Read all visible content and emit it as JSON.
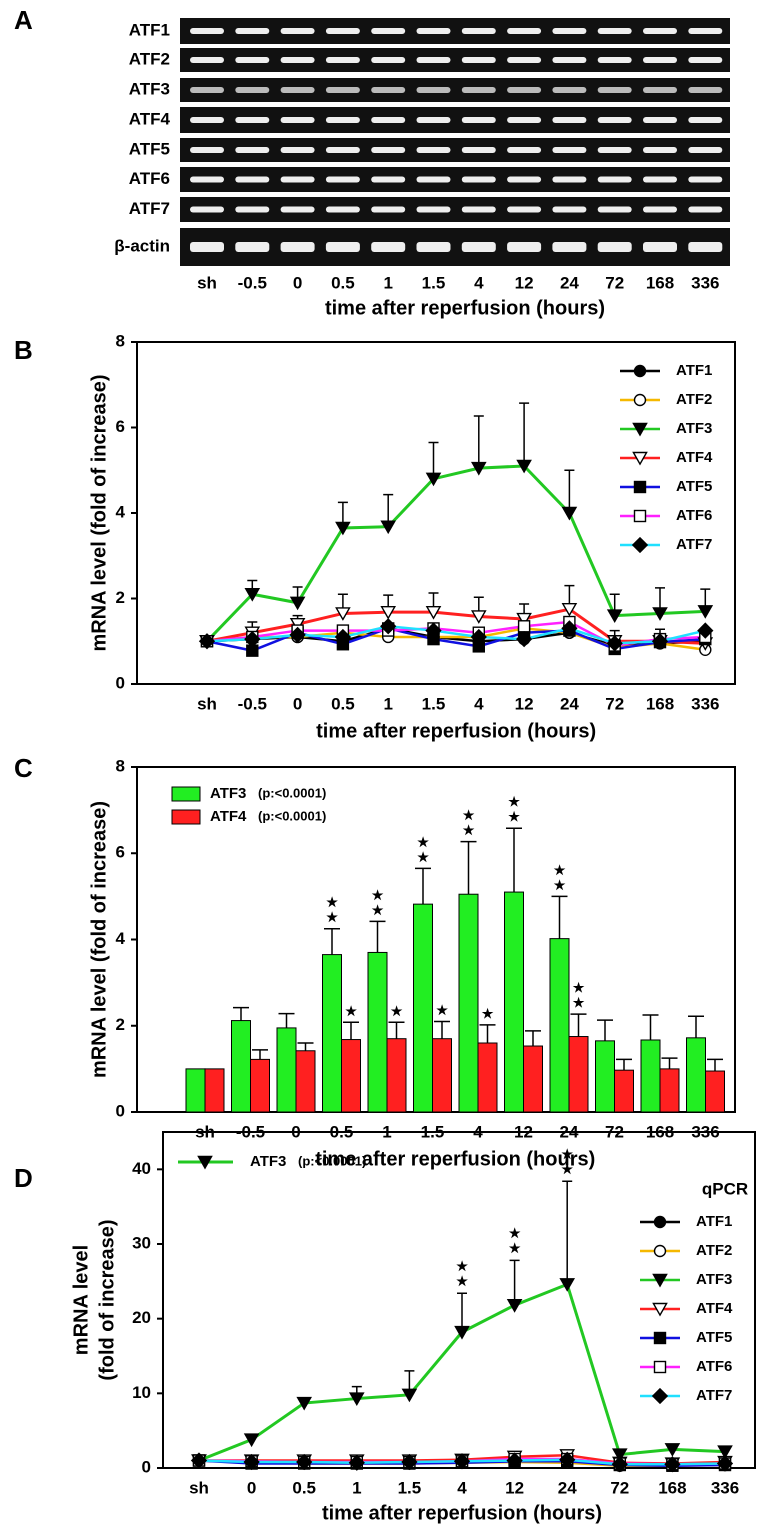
{
  "chart_data": [
    {
      "type": "gel",
      "label": "A",
      "rows": [
        "ATF1",
        "ATF2",
        "ATF3",
        "ATF4",
        "ATF5",
        "ATF6",
        "ATF7",
        "β-actin"
      ],
      "categories": [
        "sh",
        "-0.5",
        "0",
        "0.5",
        "1",
        "1.5",
        "4",
        "12",
        "24",
        "72",
        "168",
        "336"
      ],
      "xlabel": "time after reperfusion (hours)"
    },
    {
      "type": "line",
      "label": "B",
      "ylabel": "mRNA level (fold of increase)",
      "xlabel": "time after reperfusion (hours)",
      "categories": [
        "sh",
        "-0.5",
        "0",
        "0.5",
        "1",
        "1.5",
        "4",
        "12",
        "24",
        "72",
        "168",
        "336"
      ],
      "ylim": [
        0,
        8
      ],
      "yticks": [
        0,
        2,
        4,
        6,
        8
      ],
      "legend": "upper right",
      "marker_color": "#000000",
      "series": [
        {
          "name": "ATF1",
          "color": "#000000",
          "marker": "circle",
          "filled": true,
          "values": [
            1,
            1.05,
            1.1,
            1.0,
            1.3,
            1.1,
            1.0,
            1.05,
            1.2,
            0.9,
            0.95,
            1.0
          ]
        },
        {
          "name": "ATF2",
          "color": "#f5b800",
          "marker": "circle",
          "filled": false,
          "values": [
            1,
            1.1,
            1.1,
            1.2,
            1.1,
            1.1,
            1.1,
            1.3,
            1.2,
            0.85,
            0.95,
            0.8
          ]
        },
        {
          "name": "ATF3",
          "color": "#22c822",
          "marker": "triangle",
          "filled": true,
          "values": [
            1,
            2.1,
            1.9,
            3.65,
            3.68,
            4.8,
            5.05,
            5.1,
            4.0,
            1.6,
            1.65,
            1.7
          ],
          "errors": [
            null,
            0.32,
            0.37,
            0.6,
            0.75,
            0.85,
            1.22,
            1.47,
            1.0,
            0.5,
            0.6,
            0.52
          ]
        },
        {
          "name": "ATF4",
          "color": "#ff2020",
          "marker": "triangle",
          "filled": false,
          "values": [
            1,
            1.2,
            1.4,
            1.65,
            1.68,
            1.68,
            1.58,
            1.52,
            1.75,
            1.0,
            1.0,
            0.95
          ],
          "errors": [
            null,
            0.25,
            0.2,
            0.45,
            0.4,
            0.45,
            0.45,
            0.35,
            0.55,
            0.25,
            0.28,
            0.28
          ]
        },
        {
          "name": "ATF5",
          "color": "#1010e0",
          "marker": "square",
          "filled": true,
          "values": [
            1,
            0.78,
            1.2,
            0.93,
            1.3,
            1.05,
            0.88,
            1.2,
            1.25,
            0.82,
            0.98,
            1.05
          ]
        },
        {
          "name": "ATF6",
          "color": "#ff20ff",
          "marker": "square",
          "filled": false,
          "values": [
            1,
            1.1,
            1.25,
            1.25,
            1.25,
            1.3,
            1.2,
            1.35,
            1.45,
            0.9,
            1.05,
            1.1
          ]
        },
        {
          "name": "ATF7",
          "color": "#20e0ff",
          "marker": "diamond",
          "filled": true,
          "values": [
            1,
            1.05,
            1.15,
            1.1,
            1.35,
            1.25,
            1.1,
            1.05,
            1.3,
            0.95,
            1.0,
            1.25
          ]
        }
      ]
    },
    {
      "type": "bar",
      "label": "C",
      "ylabel": "mRNA level (fold of increase)",
      "xlabel": "time after reperfusion (hours)",
      "categories": [
        "sh",
        "-0.5",
        "0",
        "0.5",
        "1",
        "1.5",
        "4",
        "12",
        "24",
        "72",
        "168",
        "336"
      ],
      "ylim": [
        0,
        8
      ],
      "yticks": [
        0,
        2,
        4,
        6,
        8
      ],
      "legend": "upper left",
      "series": [
        {
          "name": "ATF3",
          "note": "(p:<0.0001)",
          "color": "#22ee22",
          "values": [
            1,
            2.12,
            1.95,
            3.65,
            3.7,
            4.82,
            5.05,
            5.1,
            4.02,
            1.65,
            1.67,
            1.72
          ],
          "errors": [
            null,
            0.3,
            0.33,
            0.6,
            0.72,
            0.83,
            1.22,
            1.48,
            0.98,
            0.48,
            0.58,
            0.5
          ],
          "annotations": [
            null,
            null,
            null,
            "★★",
            "★★",
            "★★",
            "★★",
            "★★",
            "★★",
            null,
            null,
            null
          ]
        },
        {
          "name": "ATF4",
          "note": "(p:<0.0001)",
          "color": "#ff2020",
          "values": [
            1,
            1.22,
            1.42,
            1.68,
            1.7,
            1.7,
            1.6,
            1.53,
            1.75,
            0.97,
            1.0,
            0.95
          ],
          "errors": [
            null,
            0.22,
            0.18,
            0.4,
            0.38,
            0.4,
            0.42,
            0.35,
            0.52,
            0.25,
            0.25,
            0.27
          ],
          "annotations": [
            null,
            null,
            null,
            "★",
            "★",
            "★",
            "★",
            null,
            "★★",
            null,
            null,
            null
          ]
        }
      ]
    },
    {
      "type": "line",
      "label": "D",
      "ylabel": [
        "mRNA level",
        "(fold of increase)"
      ],
      "xlabel": "time after reperfusion (hours)",
      "categories": [
        "sh",
        "0",
        "0.5",
        "1",
        "1.5",
        "4",
        "12",
        "24",
        "72",
        "168",
        "336"
      ],
      "ylim": [
        0,
        45
      ],
      "yticks": [
        0,
        10,
        20,
        30,
        40
      ],
      "legend": "right",
      "legend_title": "qPCR",
      "marker_color": "#000000",
      "series": [
        {
          "name": "ATF1",
          "color": "#000000",
          "marker": "circle",
          "filled": true,
          "values": [
            1,
            0.8,
            0.7,
            0.7,
            0.7,
            0.8,
            0.9,
            1.0,
            0.5,
            0.5,
            0.5
          ]
        },
        {
          "name": "ATF2",
          "color": "#f5b800",
          "marker": "circle",
          "filled": false,
          "values": [
            1,
            0.7,
            0.6,
            0.6,
            0.6,
            0.7,
            0.8,
            0.7,
            0.3,
            0.3,
            0.4
          ]
        },
        {
          "name": "ATF3",
          "note": "(p:<0.0001)",
          "color": "#22c822",
          "marker": "triangle",
          "filled": true,
          "values": [
            1,
            3.8,
            8.7,
            9.3,
            9.8,
            18.2,
            21.8,
            24.6,
            1.8,
            2.5,
            2.2
          ],
          "errors": [
            null,
            0.3,
            0.6,
            1.6,
            3.2,
            5.2,
            6.0,
            13.8,
            0.6,
            null,
            null
          ],
          "annotations": [
            null,
            null,
            null,
            null,
            null,
            "★★",
            "★★",
            "★★",
            null,
            null,
            null
          ]
        },
        {
          "name": "ATF4",
          "color": "#ff2020",
          "marker": "triangle",
          "filled": false,
          "values": [
            1,
            1.0,
            1.0,
            1.0,
            1.0,
            1.1,
            1.5,
            1.7,
            0.7,
            0.6,
            0.8
          ]
        },
        {
          "name": "ATF5",
          "color": "#1010e0",
          "marker": "square",
          "filled": true,
          "values": [
            1,
            0.6,
            0.6,
            0.6,
            0.6,
            0.7,
            0.9,
            0.9,
            0.4,
            0.3,
            0.4
          ]
        },
        {
          "name": "ATF6",
          "color": "#ff20ff",
          "marker": "square",
          "filled": false,
          "values": [
            1,
            0.9,
            0.8,
            0.8,
            0.8,
            0.9,
            1.2,
            1.2,
            0.6,
            0.5,
            0.6
          ]
        },
        {
          "name": "ATF7",
          "color": "#20e0ff",
          "marker": "diamond",
          "filled": true,
          "values": [
            1,
            0.8,
            0.8,
            0.7,
            0.8,
            0.9,
            1.0,
            1.1,
            0.5,
            0.5,
            0.6
          ]
        }
      ]
    }
  ]
}
